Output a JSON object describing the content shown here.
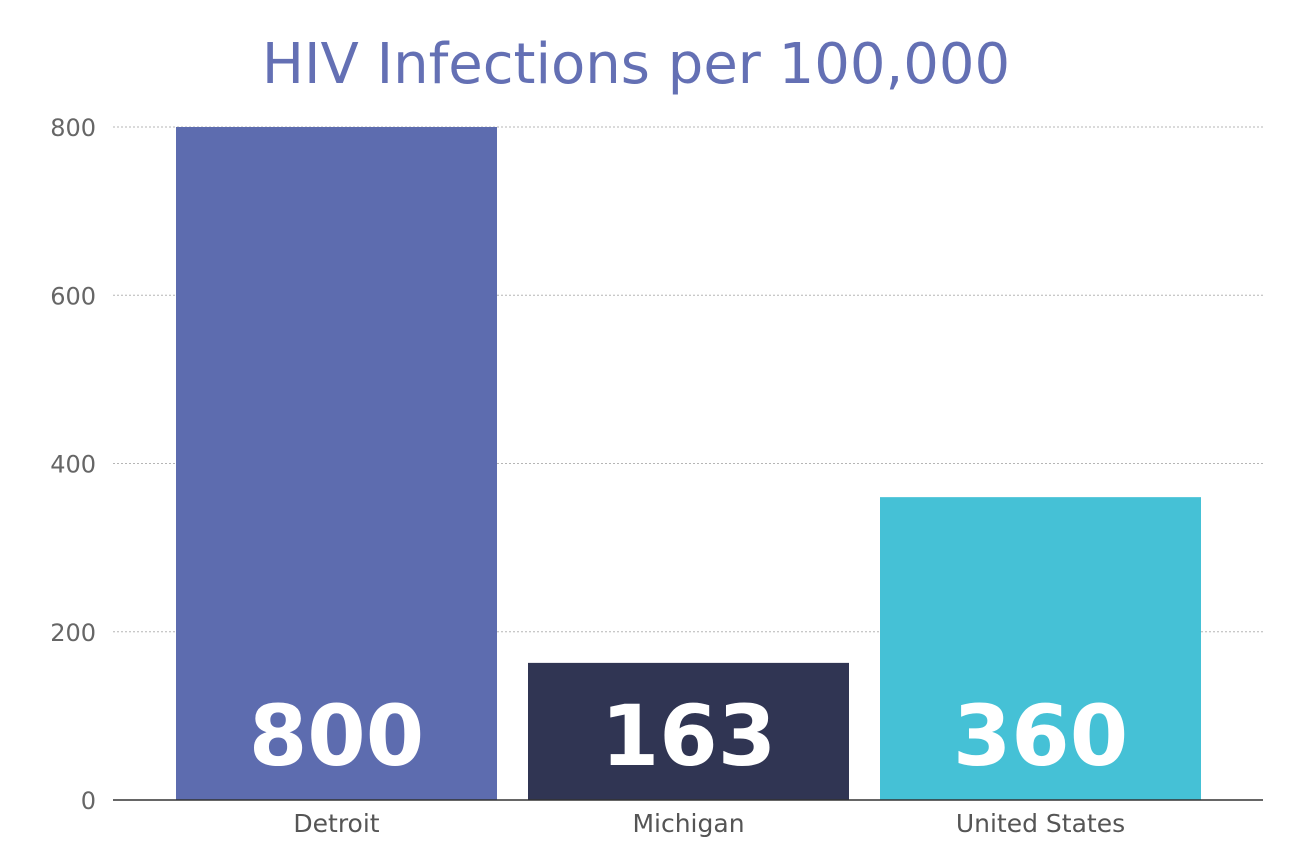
{
  "chart_data": {
    "type": "bar",
    "title": "HIV Infections per 100,000",
    "categories": [
      "Detroit",
      "Michigan",
      "United States"
    ],
    "values": [
      800,
      163,
      360
    ],
    "data_labels": [
      "800",
      "163",
      "360"
    ],
    "colors": [
      "#5d6caf",
      "#303553",
      "#45c1d6"
    ],
    "ylim": [
      0,
      800
    ],
    "yticks": [
      0,
      200,
      400,
      600,
      800
    ],
    "ytick_labels": [
      "0",
      "200",
      "400",
      "600",
      "800"
    ],
    "xlabel": "",
    "ylabel": "",
    "grid": true,
    "legend": "none"
  }
}
